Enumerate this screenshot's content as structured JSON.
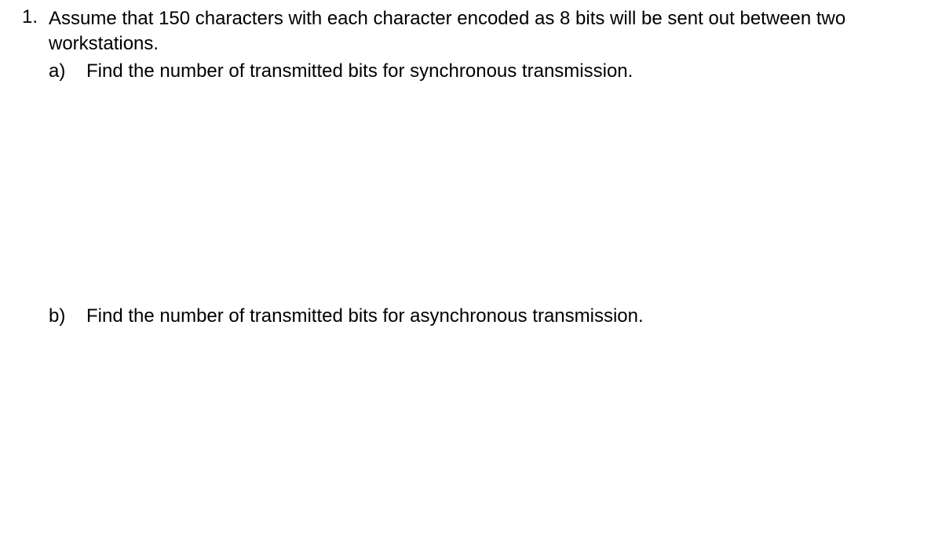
{
  "question": {
    "number": "1.",
    "intro": "Assume that 150 characters with each character encoded as 8 bits will be sent out between two workstations.",
    "parts": [
      {
        "label": "a)",
        "text": "Find the number of transmitted bits for synchronous transmission."
      },
      {
        "label": "b)",
        "text": "Find the number of transmitted bits for asynchronous transmission."
      }
    ]
  },
  "style": {
    "font_family": "Arial",
    "font_size_pt": 18,
    "text_color": "#000000",
    "background_color": "#ffffff"
  }
}
